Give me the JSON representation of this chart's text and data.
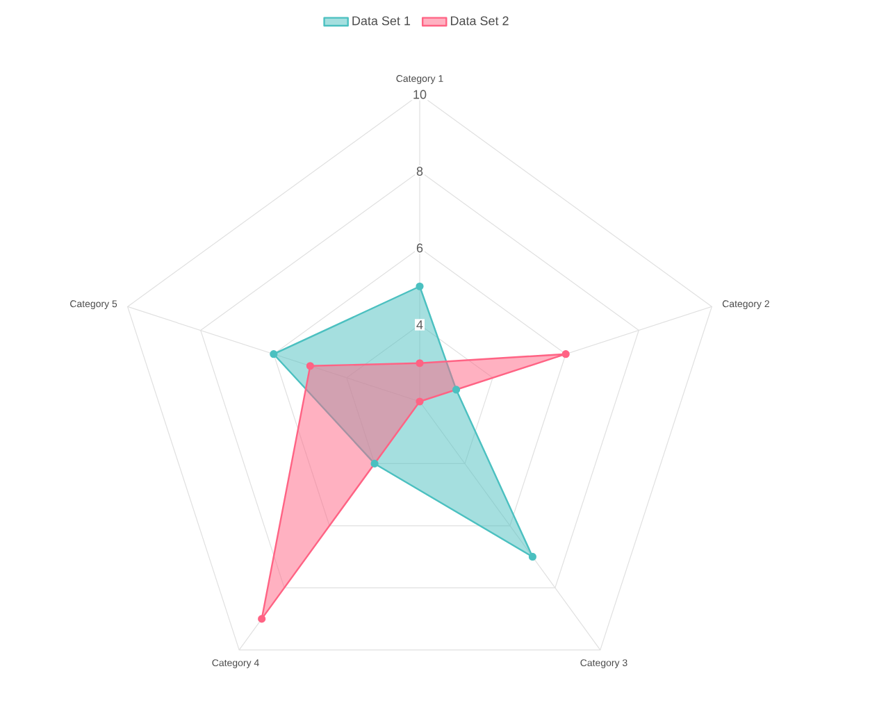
{
  "chart_data": {
    "type": "radar",
    "categories": [
      "Category 1",
      "Category 2",
      "Category 3",
      "Category 4",
      "Category 5"
    ],
    "series": [
      {
        "name": "Data Set 1",
        "color": "#4bc0c0",
        "values": [
          5,
          3,
          7,
          4,
          6
        ]
      },
      {
        "name": "Data Set 2",
        "color": "#ff6384",
        "values": [
          3,
          6,
          2,
          9,
          5
        ]
      }
    ],
    "ylim": [
      2,
      10
    ],
    "yticks": [
      4,
      6,
      8,
      10
    ],
    "grid": true,
    "legend": "top",
    "marker": "circle"
  }
}
